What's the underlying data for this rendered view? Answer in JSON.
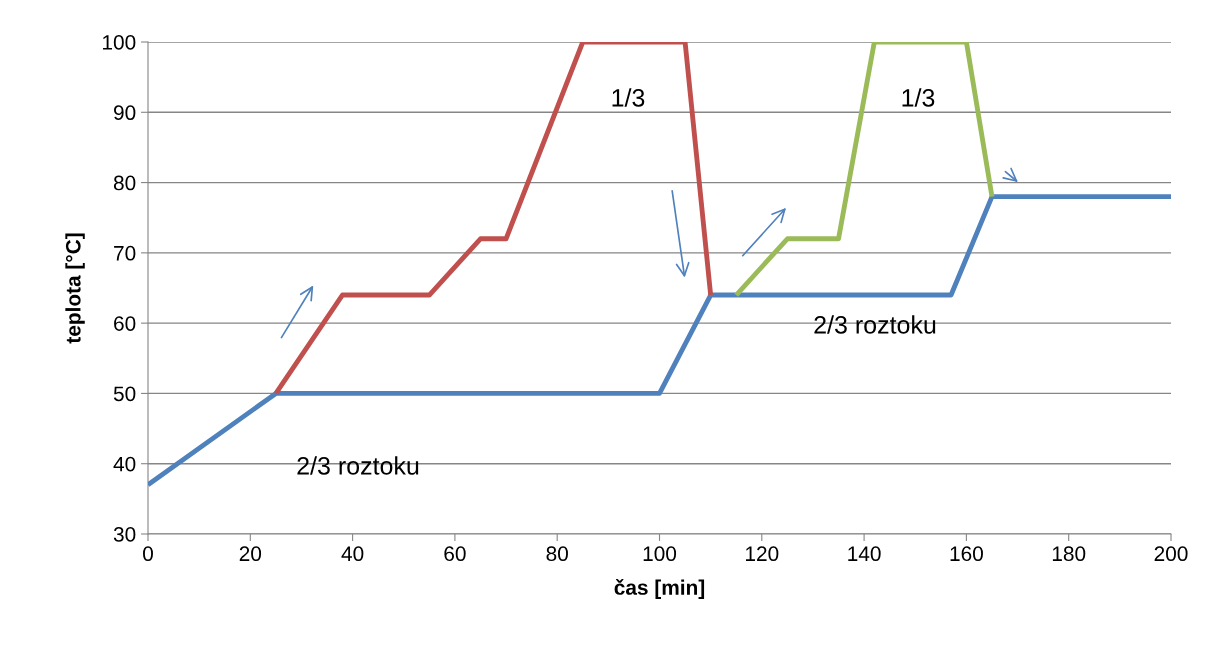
{
  "chart_data": {
    "type": "line",
    "xlabel": "čas [min]",
    "ylabel": "teplota [°C]",
    "xlim": [
      0,
      200
    ],
    "xticks": [
      0,
      20,
      40,
      60,
      80,
      100,
      120,
      140,
      160,
      180,
      200
    ],
    "ylim": [
      30,
      100
    ],
    "yticks": [
      30,
      40,
      50,
      60,
      70,
      80,
      90,
      100
    ],
    "grid": "y",
    "legend": false,
    "marker": "none",
    "line_style": "solid",
    "series": [
      {
        "color": "#4f81bd",
        "x": [
          0,
          25,
          100,
          110,
          157,
          165,
          200
        ],
        "values": [
          37,
          50,
          50,
          64,
          64,
          78,
          78
        ]
      },
      {
        "color": "#c0504d",
        "x": [
          25,
          38,
          55,
          65,
          70,
          85,
          105,
          110
        ],
        "values": [
          50,
          64,
          64,
          72,
          72,
          100,
          100,
          64
        ]
      },
      {
        "color": "#9bbb59",
        "x": [
          115,
          125,
          135,
          142,
          160,
          165
        ],
        "values": [
          64,
          72,
          72,
          100,
          100,
          78
        ]
      }
    ],
    "annotations": [
      "1/3",
      "1/3",
      "2/3 roztoku",
      "2/3 roztoku"
    ]
  }
}
